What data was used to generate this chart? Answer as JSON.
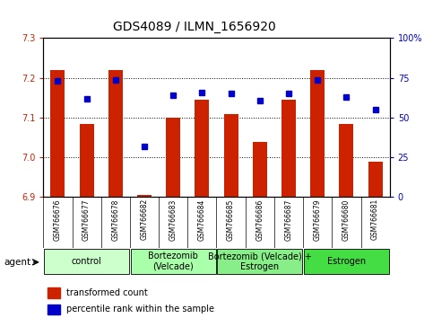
{
  "title": "GDS4089 / ILMN_1656920",
  "samples": [
    "GSM766676",
    "GSM766677",
    "GSM766678",
    "GSM766682",
    "GSM766683",
    "GSM766684",
    "GSM766685",
    "GSM766686",
    "GSM766687",
    "GSM766679",
    "GSM766680",
    "GSM766681"
  ],
  "bar_values": [
    7.22,
    7.085,
    7.22,
    6.905,
    7.1,
    7.145,
    7.11,
    7.04,
    7.145,
    7.22,
    7.085,
    6.99
  ],
  "dot_values": [
    73,
    62,
    74,
    32,
    64,
    66,
    65,
    61,
    65,
    74,
    63,
    55
  ],
  "ylim_left": [
    6.9,
    7.3
  ],
  "ylim_right": [
    0,
    100
  ],
  "yticks_left": [
    6.9,
    7.0,
    7.1,
    7.2,
    7.3
  ],
  "yticks_right": [
    0,
    25,
    50,
    75,
    100
  ],
  "ytick_labels_right": [
    "0",
    "25",
    "50",
    "75",
    "100%"
  ],
  "bar_color": "#CC2200",
  "dot_color": "#0000CC",
  "bar_baseline": 6.9,
  "groups": [
    {
      "label": "control",
      "start": 0,
      "end": 3,
      "color": "#CCFFCC"
    },
    {
      "label": "Bortezomib\n(Velcade)",
      "start": 3,
      "end": 6,
      "color": "#AAFFAA"
    },
    {
      "label": "Bortezomib (Velcade) +\nEstrogen",
      "start": 6,
      "end": 9,
      "color": "#88EE88"
    },
    {
      "label": "Estrogen",
      "start": 9,
      "end": 12,
      "color": "#44DD44"
    }
  ],
  "legend_bar_label": "transformed count",
  "legend_dot_label": "percentile rank within the sample",
  "agent_label": "agent",
  "background_color": "#FFFFFF",
  "tick_label_color_left": "#CC2200",
  "tick_label_color_right": "#0000CC",
  "title_fontsize": 10,
  "axis_fontsize": 7,
  "group_fontsize": 7,
  "legend_fontsize": 7
}
